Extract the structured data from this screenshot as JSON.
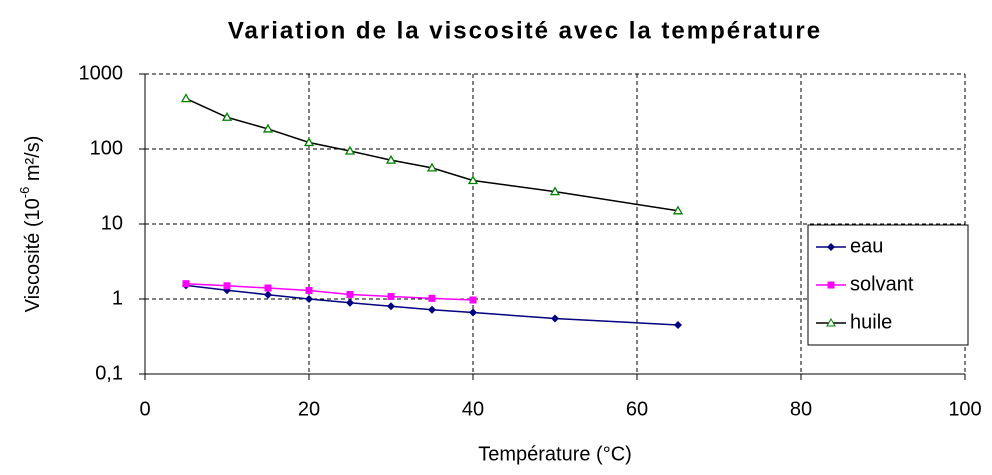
{
  "chart_data": {
    "type": "line",
    "title": "Variation de la viscosité avec la température",
    "xlabel": "Température (°C)",
    "ylabel": [
      "Viscosité (10",
      "-6",
      " m²/s)"
    ],
    "xlim": [
      0,
      100
    ],
    "xticks": [
      0,
      20,
      40,
      60,
      80,
      100
    ],
    "ylim": [
      0.1,
      1000
    ],
    "yticks": [
      {
        "value": 0.1,
        "label": "0,1"
      },
      1,
      10,
      100,
      1000
    ],
    "log_y": true,
    "grid": true,
    "legend": "right",
    "series": [
      {
        "name": "eau",
        "color": "#000080",
        "marker": "diamond",
        "x": [
          5,
          10,
          15,
          20,
          25,
          30,
          35,
          40,
          50,
          65
        ],
        "values": [
          1.52,
          1.31,
          1.14,
          1.0,
          0.89,
          0.8,
          0.72,
          0.66,
          0.55,
          0.45
        ]
      },
      {
        "name": "solvant",
        "color": "#ff00ff",
        "marker": "square",
        "x": [
          5,
          10,
          15,
          20,
          25,
          30,
          35,
          40
        ],
        "values": [
          1.6,
          1.5,
          1.4,
          1.3,
          1.15,
          1.08,
          1.02,
          0.97
        ]
      },
      {
        "name": "huile",
        "color": "#008000",
        "marker": "triangle",
        "x": [
          5,
          10,
          15,
          20,
          25,
          30,
          35,
          40,
          50,
          65
        ],
        "values": [
          470,
          265,
          185,
          122,
          94,
          71,
          56,
          38,
          27,
          15
        ]
      }
    ]
  }
}
